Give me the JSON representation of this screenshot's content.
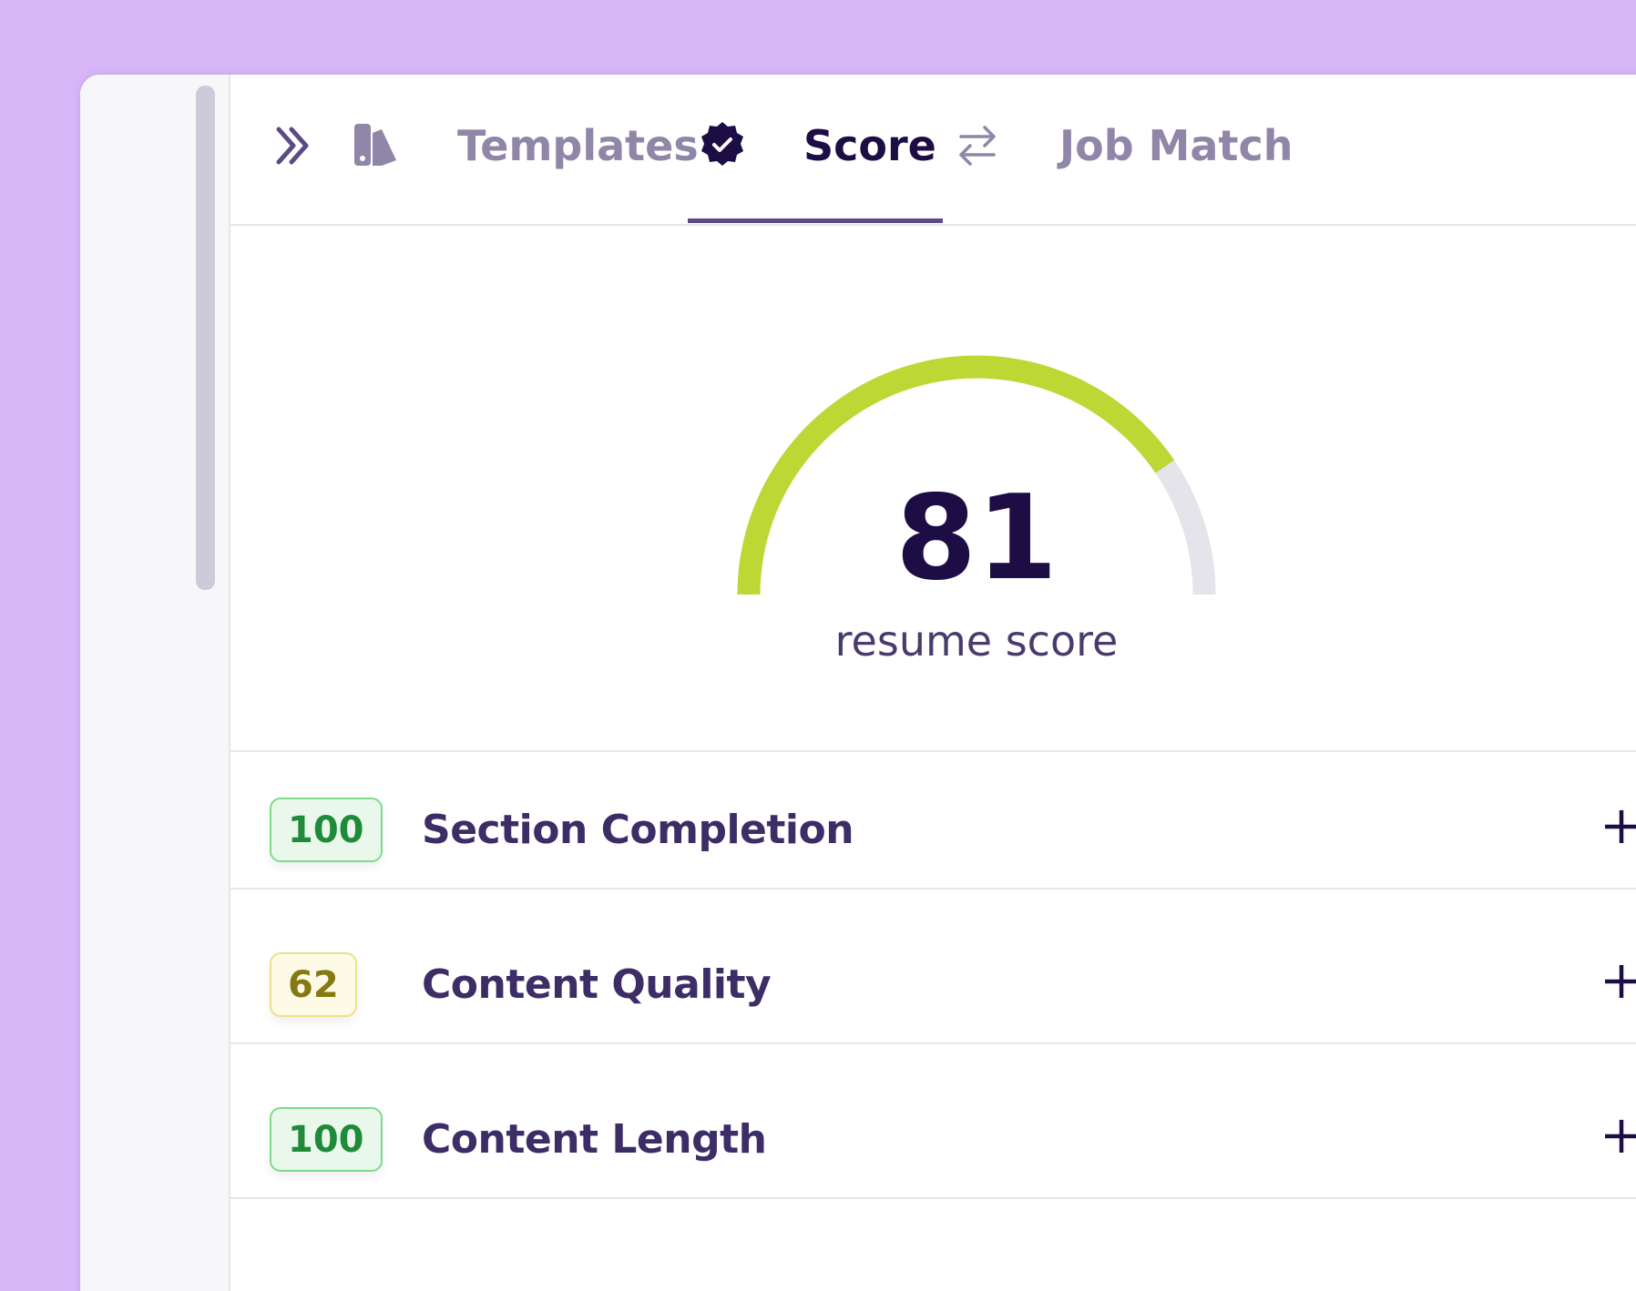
{
  "tabs": [
    {
      "label": "Templates",
      "active": false
    },
    {
      "label": "Score",
      "active": true
    },
    {
      "label": "Job Match",
      "active": false
    }
  ],
  "score": {
    "value": 81,
    "label": "resume score"
  },
  "sections": [
    {
      "score": 100,
      "label": "Section Completion",
      "badge_color": "green"
    },
    {
      "score": 62,
      "label": "Content Quality",
      "badge_color": "yellow"
    },
    {
      "score": 100,
      "label": "Content Length",
      "badge_color": "green"
    }
  ]
}
